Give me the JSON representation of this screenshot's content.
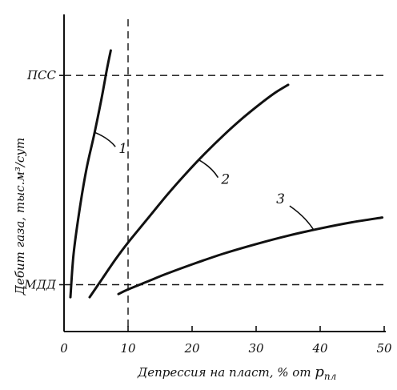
{
  "chart_data": {
    "type": "line",
    "xlabel": "Депрессия на пласт, % от",
    "xlabel_symbol": "p",
    "xlabel_subscript": "пл",
    "ylabel": "Дебит газа, тыс.м³/сут",
    "xlim": [
      0,
      50
    ],
    "x_ticks": [
      0,
      10,
      20,
      30,
      40,
      50
    ],
    "x_tick_labels": [
      "0",
      "10",
      "20",
      "30",
      "40",
      "50"
    ],
    "ylim": [
      0,
      100
    ],
    "grid": false,
    "reference_lines": [
      {
        "axis": "y",
        "label": "ПСС",
        "value": 82
      },
      {
        "axis": "y",
        "label": "МДД",
        "value": 15
      },
      {
        "axis": "x",
        "label": "10",
        "value": 10
      }
    ],
    "series": [
      {
        "name": "1",
        "x": [
          1.0,
          1.5,
          2.5,
          3.5,
          4.7,
          5.8,
          6.7,
          7.3
        ],
        "y": [
          11,
          25,
          40,
          52,
          63,
          74,
          84,
          90
        ]
      },
      {
        "name": "2",
        "x": [
          4.0,
          6.0,
          8.0,
          10.0,
          13.0,
          16.0,
          19.0,
          22.0,
          25.0,
          28.0,
          31.0,
          33.0,
          35.0
        ],
        "y": [
          11,
          17,
          23,
          28.5,
          36,
          43.5,
          50.5,
          57,
          63,
          68.5,
          73.5,
          76.5,
          79
        ]
      },
      {
        "name": "3",
        "x": [
          8.5,
          10.0,
          13.0,
          16.0,
          20.0,
          25.0,
          30.0,
          35.0,
          40.0,
          45.0,
          49.7
        ],
        "y": [
          12,
          13.5,
          16,
          18.5,
          21.5,
          25,
          28,
          30.7,
          33,
          35,
          36.5
        ]
      }
    ]
  }
}
